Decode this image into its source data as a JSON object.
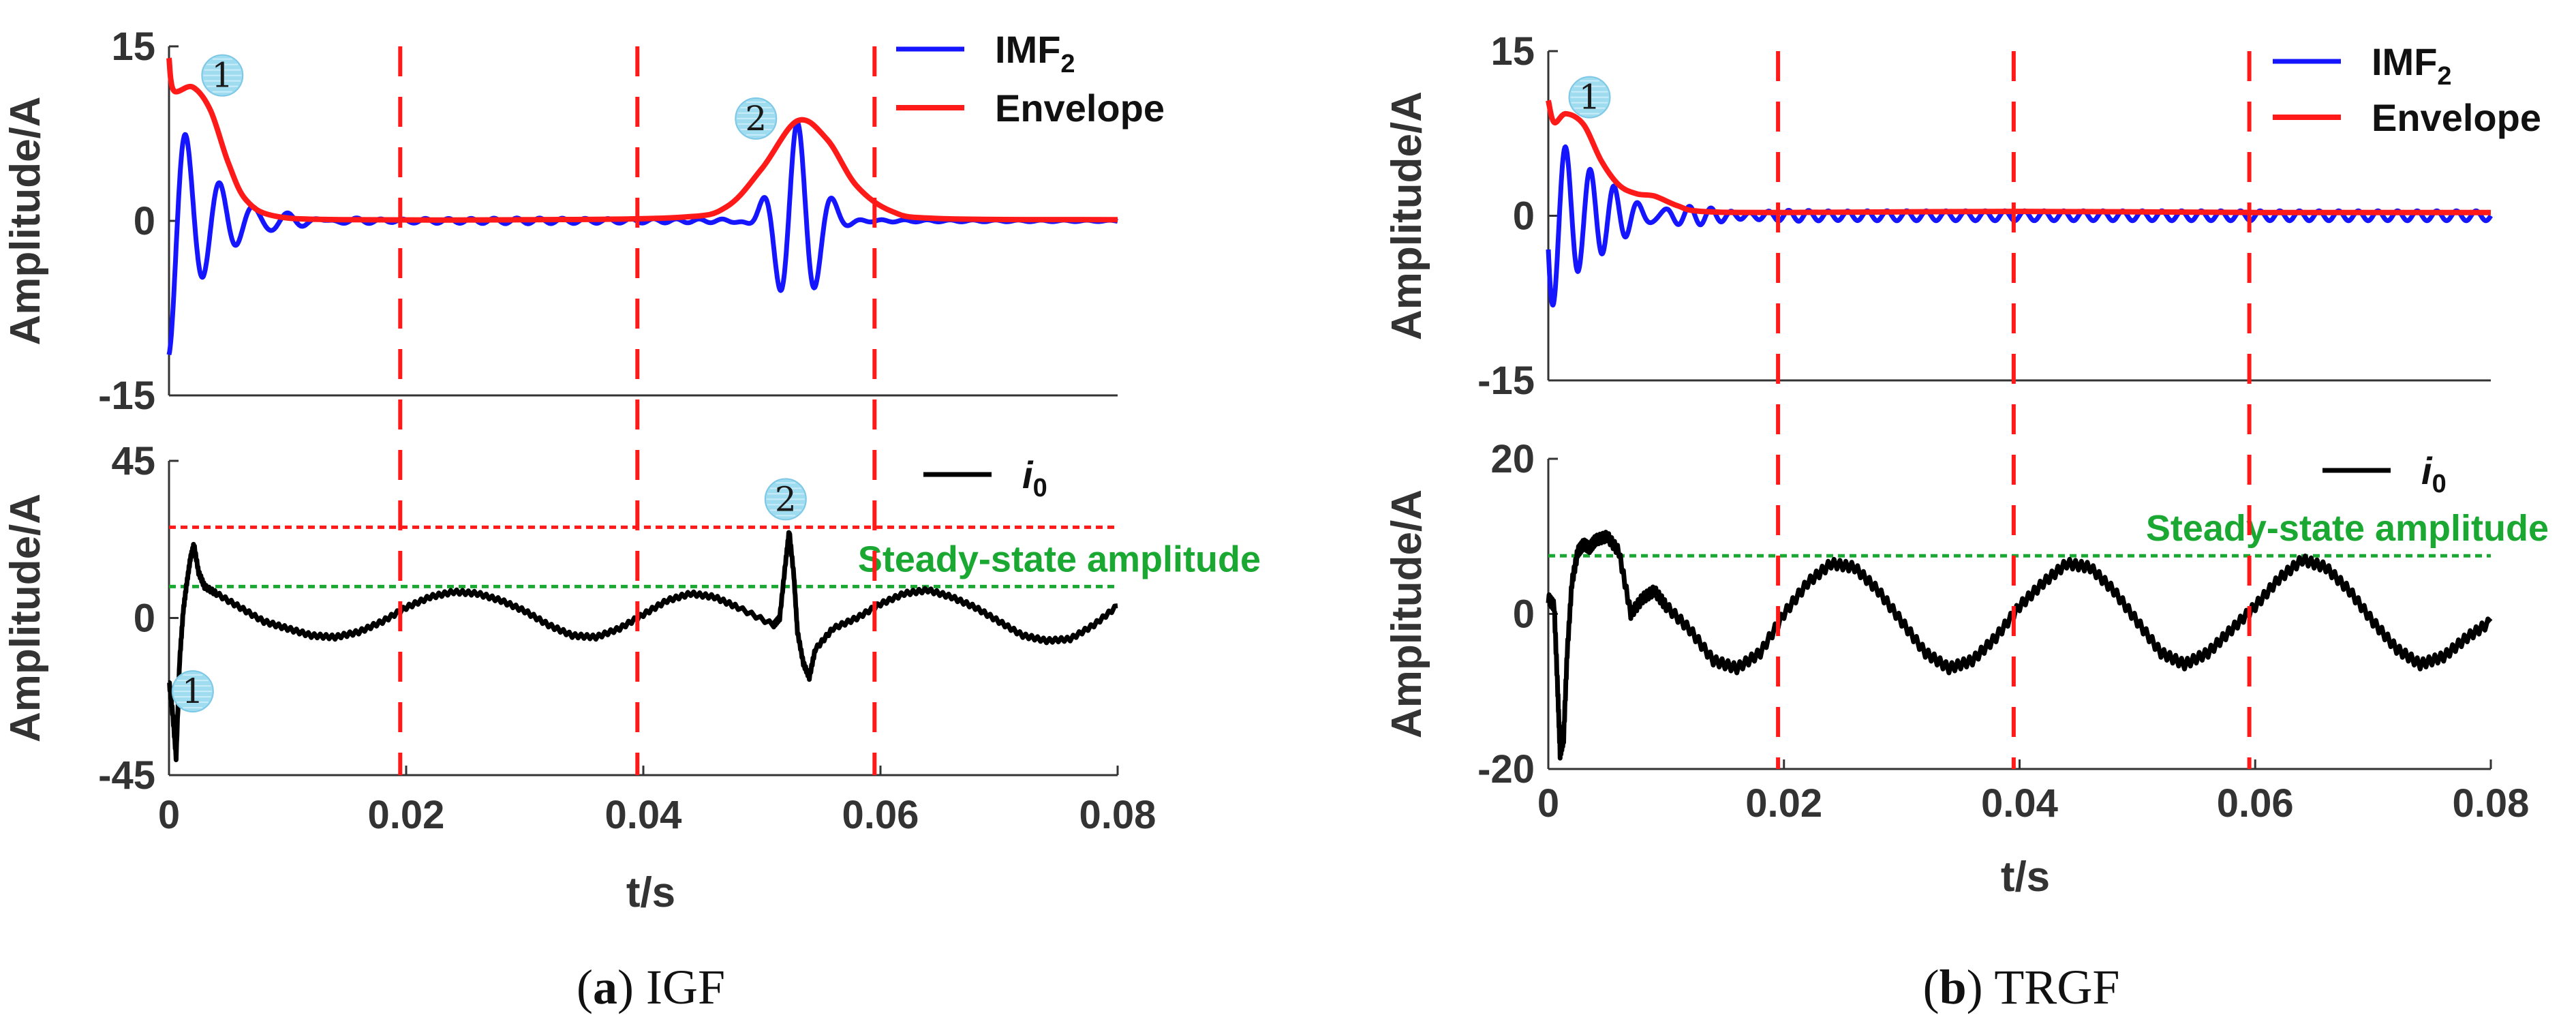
{
  "colors": {
    "imf": "#1515ff",
    "envelope": "#ff1a1a",
    "current": "#000000",
    "steady": "#1aa832",
    "peakline": "#ff1a1a",
    "boundary": "#ff1a1a",
    "marker_fill": "#9fdcf0"
  },
  "chart_data": [
    {
      "panel_id": "a",
      "caption_letter": "a",
      "caption_text": "IGF",
      "type": "line",
      "x_label": "t/s",
      "x_ticks": [
        "0",
        "0.02",
        "0.04",
        "0.06",
        "0.08"
      ],
      "x_range": [
        0,
        0.08
      ],
      "cycle_boundaries": [
        0.0195,
        0.0395,
        0.0595
      ],
      "top": {
        "type": "line",
        "y_label": "Amplitude/A",
        "y_ticks": [
          "15",
          "0",
          "-15"
        ],
        "y_range": [
          -15,
          15
        ],
        "legend": [
          "IMF",
          "Envelope"
        ],
        "legend_sub": "2",
        "series": [
          {
            "name": "IMF2",
            "kind": "imf_burst",
            "bursts": [
              {
                "t0": 0,
                "dur": 0.01,
                "amp": 11.5,
                "phase": 3.14,
                "tau": 0.0033,
                "freq": 350
              },
              {
                "t0": 0.0475,
                "dur": 0.012,
                "amp": 8.5,
                "phase": 3.1,
                "tau": 0.0024,
                "freq": 330,
                "center": 0.053
              }
            ]
          },
          {
            "name": "Envelope",
            "kind": "envelope",
            "points": [
              [
                0,
                14
              ],
              [
                0.0004,
                11.2
              ],
              [
                0.002,
                11.5
              ],
              [
                0.0035,
                9.5
              ],
              [
                0.005,
                5
              ],
              [
                0.0065,
                1.8
              ],
              [
                0.009,
                0.4
              ],
              [
                0.015,
                0.1
              ],
              [
                0.03,
                0.1
              ],
              [
                0.043,
                0.3
              ],
              [
                0.047,
                1.2
              ],
              [
                0.05,
                4.5
              ],
              [
                0.053,
                8.6
              ],
              [
                0.0555,
                7
              ],
              [
                0.058,
                3
              ],
              [
                0.061,
                0.8
              ],
              [
                0.065,
                0.2
              ],
              [
                0.08,
                0.1
              ]
            ]
          }
        ],
        "markers": [
          {
            "label": "1",
            "t": 0.0045,
            "y": 12.5
          },
          {
            "label": "2",
            "t": 0.0495,
            "y": 8.8
          }
        ]
      },
      "bottom": {
        "type": "line",
        "y_label": "Amplitude/A",
        "y_ticks": [
          "45",
          "0",
          "-45"
        ],
        "y_range": [
          -45,
          45
        ],
        "legend": [
          "i",
          "0"
        ],
        "steady_state_label": "Steady-state amplitude",
        "steady_state_value": 9,
        "peak_line_value": 26,
        "markers": [
          {
            "label": "1",
            "t": 0.002,
            "y": -21
          },
          {
            "label": "2",
            "t": 0.052,
            "y": 34
          }
        ],
        "series": [
          {
            "name": "i0",
            "points": [
              [
                0,
                -18
              ],
              [
                0.0003,
                -27
              ],
              [
                0.0006,
                -40
              ],
              [
                0.0009,
                -12
              ],
              [
                0.0012,
                2
              ],
              [
                0.0015,
                10
              ],
              [
                0.0018,
                17
              ],
              [
                0.0021,
                21
              ],
              [
                0.0025,
                13
              ],
              [
                0.003,
                9
              ],
              [
                0.004,
                7
              ],
              [
                0.006,
                3
              ],
              [
                0.008,
                -1
              ],
              [
                0.01,
                -3
              ],
              [
                0.012,
                -5
              ],
              [
                0.014,
                -5.5
              ],
              [
                0.016,
                -4
              ],
              [
                0.018,
                -1
              ],
              [
                0.02,
                3
              ],
              [
                0.022,
                6
              ],
              [
                0.024,
                7.5
              ],
              [
                0.026,
                7
              ],
              [
                0.028,
                5
              ],
              [
                0.03,
                2
              ],
              [
                0.032,
                -2
              ],
              [
                0.034,
                -5
              ],
              [
                0.036,
                -5.5
              ],
              [
                0.038,
                -3
              ],
              [
                0.04,
                1
              ],
              [
                0.042,
                5
              ],
              [
                0.044,
                7
              ],
              [
                0.046,
                6
              ],
              [
                0.048,
                3
              ],
              [
                0.051,
                -2
              ],
              [
                0.0515,
                0
              ],
              [
                0.052,
                16
              ],
              [
                0.0523,
                25
              ],
              [
                0.0527,
                12
              ],
              [
                0.053,
                -4
              ],
              [
                0.0535,
                -13
              ],
              [
                0.054,
                -17
              ],
              [
                0.0545,
                -9
              ],
              [
                0.056,
                -3
              ],
              [
                0.058,
                0
              ],
              [
                0.06,
                4
              ],
              [
                0.062,
                7
              ],
              [
                0.064,
                8
              ],
              [
                0.066,
                6
              ],
              [
                0.068,
                3
              ],
              [
                0.07,
                -1
              ],
              [
                0.072,
                -5
              ],
              [
                0.074,
                -6.5
              ],
              [
                0.076,
                -6
              ],
              [
                0.078,
                -2
              ],
              [
                0.08,
                3.5
              ]
            ]
          }
        ]
      }
    },
    {
      "panel_id": "b",
      "caption_letter": "b",
      "caption_text": "TRGF",
      "type": "line",
      "x_label": "t/s",
      "x_ticks": [
        "0",
        "0.02",
        "0.04",
        "0.06",
        "0.08"
      ],
      "x_range": [
        0,
        0.08
      ],
      "cycle_boundaries": [
        0.0195,
        0.0395,
        0.0595
      ],
      "top": {
        "type": "line",
        "y_label": "Amplitude/A",
        "y_ticks": [
          "15",
          "0",
          "-15"
        ],
        "y_range": [
          -15,
          15
        ],
        "legend": [
          "IMF",
          "Envelope"
        ],
        "legend_sub": "2",
        "series": [
          {
            "name": "IMF2",
            "kind": "imf_burst",
            "bursts": [
              {
                "t0": 0,
                "dur": 0.012,
                "amp": 9.5,
                "phase": 1.9,
                "tau": 0.004,
                "freq": 480
              }
            ],
            "ripple": 0.45
          },
          {
            "name": "Envelope",
            "kind": "envelope",
            "points": [
              [
                0,
                10.5
              ],
              [
                0.0005,
                8.5
              ],
              [
                0.0015,
                9.3
              ],
              [
                0.003,
                8.3
              ],
              [
                0.0045,
                5
              ],
              [
                0.006,
                2.8
              ],
              [
                0.0075,
                2
              ],
              [
                0.009,
                1.8
              ],
              [
                0.011,
                0.9
              ],
              [
                0.013,
                0.4
              ],
              [
                0.02,
                0.3
              ],
              [
                0.04,
                0.4
              ],
              [
                0.06,
                0.3
              ],
              [
                0.08,
                0.3
              ]
            ]
          }
        ],
        "markers": [
          {
            "label": "1",
            "t": 0.0035,
            "y": 10.8
          }
        ]
      },
      "bottom": {
        "type": "line",
        "y_label": "Amplitude/A",
        "y_ticks": [
          "20",
          "0",
          "-20"
        ],
        "y_range": [
          -20,
          20
        ],
        "legend": [
          "i",
          "0"
        ],
        "steady_state_label": "Steady-state amplitude",
        "steady_state_value": 7.5,
        "markers": [],
        "series": [
          {
            "name": "i0",
            "points": [
              [
                0,
                2
              ],
              [
                0.0005,
                1
              ],
              [
                0.0008,
                -10
              ],
              [
                0.001,
                -18
              ],
              [
                0.0013,
                -16
              ],
              [
                0.0016,
                -5
              ],
              [
                0.002,
                4
              ],
              [
                0.0025,
                8
              ],
              [
                0.003,
                9
              ],
              [
                0.0035,
                8.5
              ],
              [
                0.004,
                9.5
              ],
              [
                0.005,
                10
              ],
              [
                0.006,
                8
              ],
              [
                0.007,
                0
              ],
              [
                0.008,
                2
              ],
              [
                0.009,
                3
              ],
              [
                0.01,
                1
              ],
              [
                0.012,
                -2
              ],
              [
                0.014,
                -6
              ],
              [
                0.016,
                -7
              ],
              [
                0.018,
                -5
              ],
              [
                0.02,
                0
              ],
              [
                0.022,
                4
              ],
              [
                0.024,
                6.5
              ],
              [
                0.026,
                6
              ],
              [
                0.028,
                3
              ],
              [
                0.03,
                -1
              ],
              [
                0.032,
                -5
              ],
              [
                0.034,
                -7
              ],
              [
                0.036,
                -6
              ],
              [
                0.038,
                -3
              ],
              [
                0.04,
                1
              ],
              [
                0.042,
                4
              ],
              [
                0.044,
                6.5
              ],
              [
                0.046,
                6
              ],
              [
                0.048,
                3
              ],
              [
                0.05,
                -1
              ],
              [
                0.052,
                -5
              ],
              [
                0.054,
                -6.5
              ],
              [
                0.056,
                -5
              ],
              [
                0.058,
                -2
              ],
              [
                0.06,
                1
              ],
              [
                0.062,
                4.5
              ],
              [
                0.064,
                7
              ],
              [
                0.066,
                6
              ],
              [
                0.068,
                3
              ],
              [
                0.07,
                -1
              ],
              [
                0.072,
                -4.5
              ],
              [
                0.074,
                -6.5
              ],
              [
                0.076,
                -5.5
              ],
              [
                0.078,
                -3
              ],
              [
                0.08,
                -1
              ]
            ]
          }
        ]
      }
    }
  ]
}
